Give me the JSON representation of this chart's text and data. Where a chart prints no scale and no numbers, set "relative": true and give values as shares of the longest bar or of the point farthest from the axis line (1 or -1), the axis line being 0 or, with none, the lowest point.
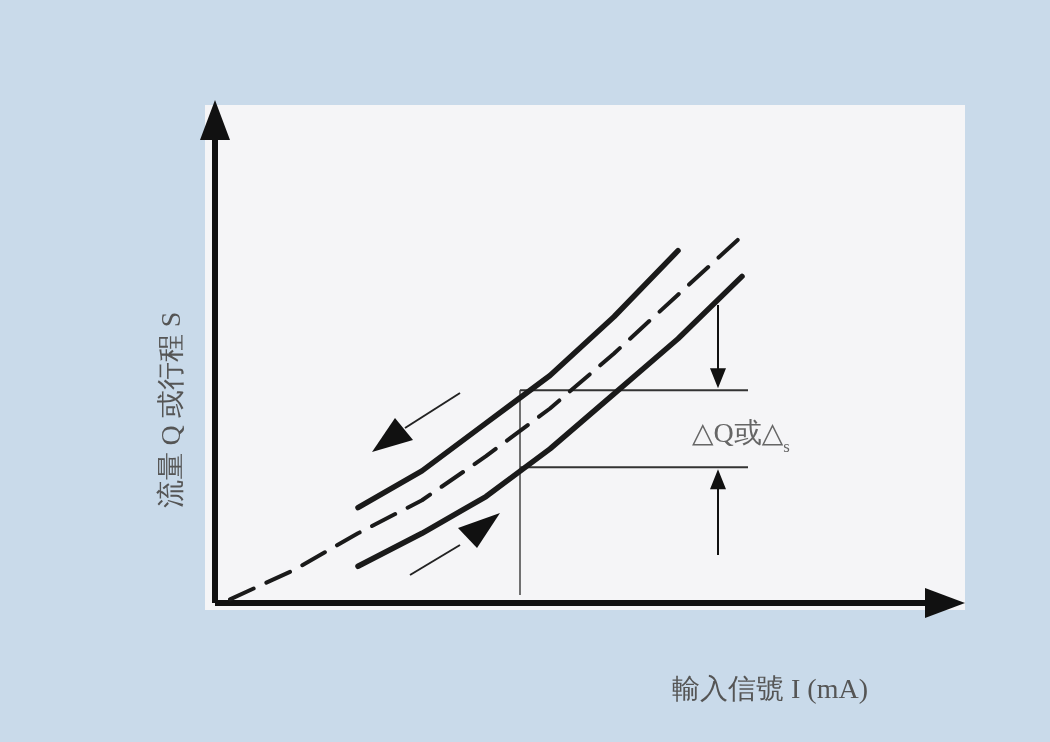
{
  "chart_data": {
    "type": "line",
    "relative": true,
    "xlabel": "輸入信號 I (mA)",
    "ylabel": "流量 Q 或行程 S",
    "categories": [
      null,
      null,
      null,
      null,
      null,
      null,
      null,
      null,
      null
    ],
    "series": [
      {
        "color": "#1a1a1a",
        "line_style": "solid",
        "values": [
          null,
          null,
          0.26,
          0.36,
          0.49,
          0.62,
          0.78,
          0.96,
          null
        ]
      },
      {
        "color": "#1a1a1a",
        "line_style": "dashed",
        "values": [
          0.01,
          0.09,
          0.19,
          0.28,
          0.4,
          0.53,
          0.68,
          0.84,
          1
        ]
      },
      {
        "color": "#1a1a1a",
        "line_style": "solid",
        "values": [
          null,
          null,
          0.1,
          0.19,
          0.29,
          0.42,
          0.57,
          0.72,
          0.89
        ]
      }
    ],
    "ref_lines": [
      {
        "axis": "y",
        "value": 0.58,
        "color": "#333333"
      },
      {
        "axis": "y",
        "value": 0.37,
        "color": "#333333"
      }
    ],
    "annotations": [
      "△Q或△$_{s}$"
    ]
  }
}
